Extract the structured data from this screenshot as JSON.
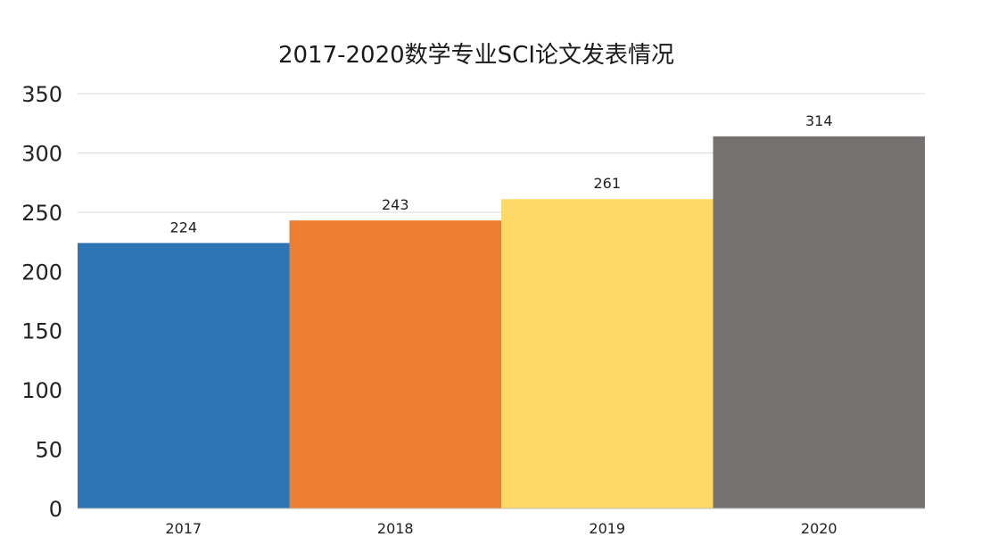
{
  "chart_data": {
    "type": "bar",
    "title": "2017-2020数学专业SCI论文发表情况",
    "categories": [
      "2017",
      "2018",
      "2019",
      "2020"
    ],
    "values": [
      224,
      243,
      261,
      314
    ],
    "colors": [
      "#2e75b6",
      "#ed7d31",
      "#ffd966",
      "#767171"
    ],
    "ylim": [
      0,
      350
    ],
    "yticks": [
      0,
      50,
      100,
      150,
      200,
      250,
      300,
      350
    ],
    "grid": true,
    "data_labels": true,
    "xlabel": "",
    "ylabel": ""
  }
}
